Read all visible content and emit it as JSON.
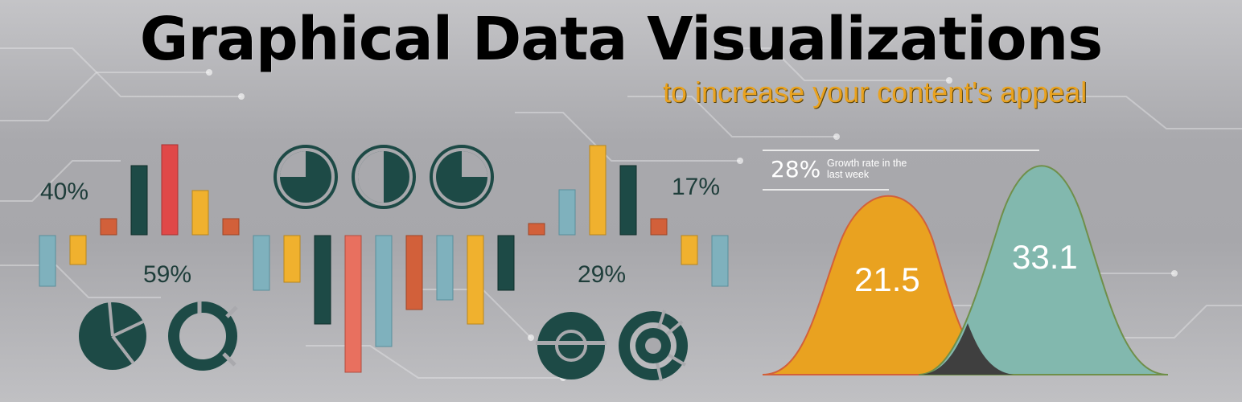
{
  "header": {
    "title": "Graphical Data Visualizations",
    "subtitle": "to increase your content's appeal"
  },
  "labels": {
    "pct_40": "40%",
    "pct_59": "59%",
    "pct_17": "17%",
    "pct_29": "29%"
  },
  "callout": {
    "value": "28%",
    "text_line1": "Growth rate in the",
    "text_line2": "last week"
  },
  "bell_curves": {
    "left_value": "21.5",
    "right_value": "33.1"
  },
  "colors": {
    "dark_teal": "#1d4a46",
    "light_blue": "#7fb1bd",
    "yellow": "#f0b12e",
    "orange_red": "#d2603a",
    "red": "#e04848",
    "salmon": "#e8705f",
    "bell_yellow": "#e9a220",
    "bell_teal": "#82b8ae"
  },
  "icons": [
    "pie-chart-icon",
    "donut-chart-icon",
    "clock-chart-icon"
  ]
}
